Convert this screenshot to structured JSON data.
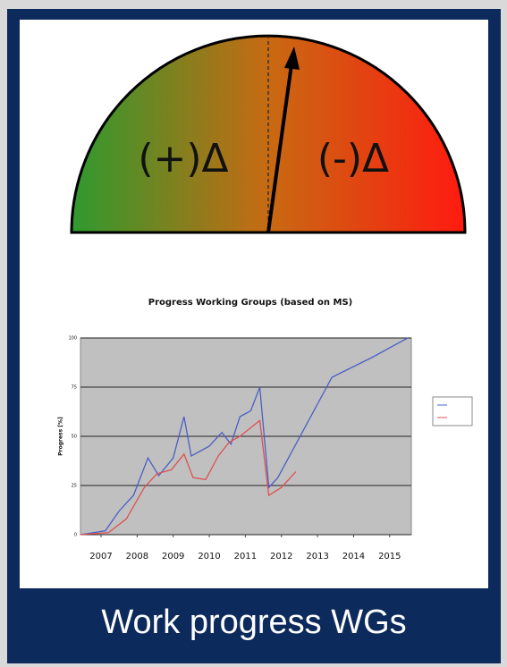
{
  "gauge": {
    "left_label": "(+)Δ",
    "right_label": "(-)Δ"
  },
  "chart_data": {
    "type": "line",
    "title": "Progress Working Groups (based on MS)",
    "y_label": "Progress [%]",
    "xlim": [
      2006.43,
      2015.6
    ],
    "xticks": [
      2007,
      2008,
      2009,
      2010,
      2011,
      2012,
      2013,
      2014,
      2015
    ],
    "ylim": [
      0,
      100
    ],
    "yticks": [
      0,
      25,
      50,
      75,
      100
    ],
    "grid": true,
    "series": [
      {
        "color": "#4a5fc4",
        "x": [
          2006.43,
          2007.12,
          2007.5,
          2007.9,
          2008.3,
          2008.6,
          2009.0,
          2009.3,
          2009.5,
          2010.0,
          2010.35,
          2010.6,
          2010.85,
          2011.15,
          2011.4,
          2011.65,
          2011.9,
          2013.4,
          2014.5,
          2015.5
        ],
        "values": [
          0,
          2,
          12,
          20,
          39,
          30,
          39,
          60,
          40,
          45,
          52,
          46,
          60,
          63,
          75,
          24,
          29,
          80,
          90,
          100
        ]
      },
      {
        "color": "#e05050",
        "x": [
          2006.43,
          2007.2,
          2007.7,
          2008.2,
          2008.55,
          2008.95,
          2009.3,
          2009.55,
          2009.9,
          2010.25,
          2010.55,
          2010.85,
          2011.4,
          2011.65,
          2012.0,
          2012.4
        ],
        "values": [
          0,
          1,
          8,
          24,
          31,
          33,
          41,
          29,
          28,
          40,
          47,
          50,
          58,
          20,
          24,
          32
        ]
      }
    ]
  },
  "banner": {
    "text": "Work progress WGs"
  }
}
